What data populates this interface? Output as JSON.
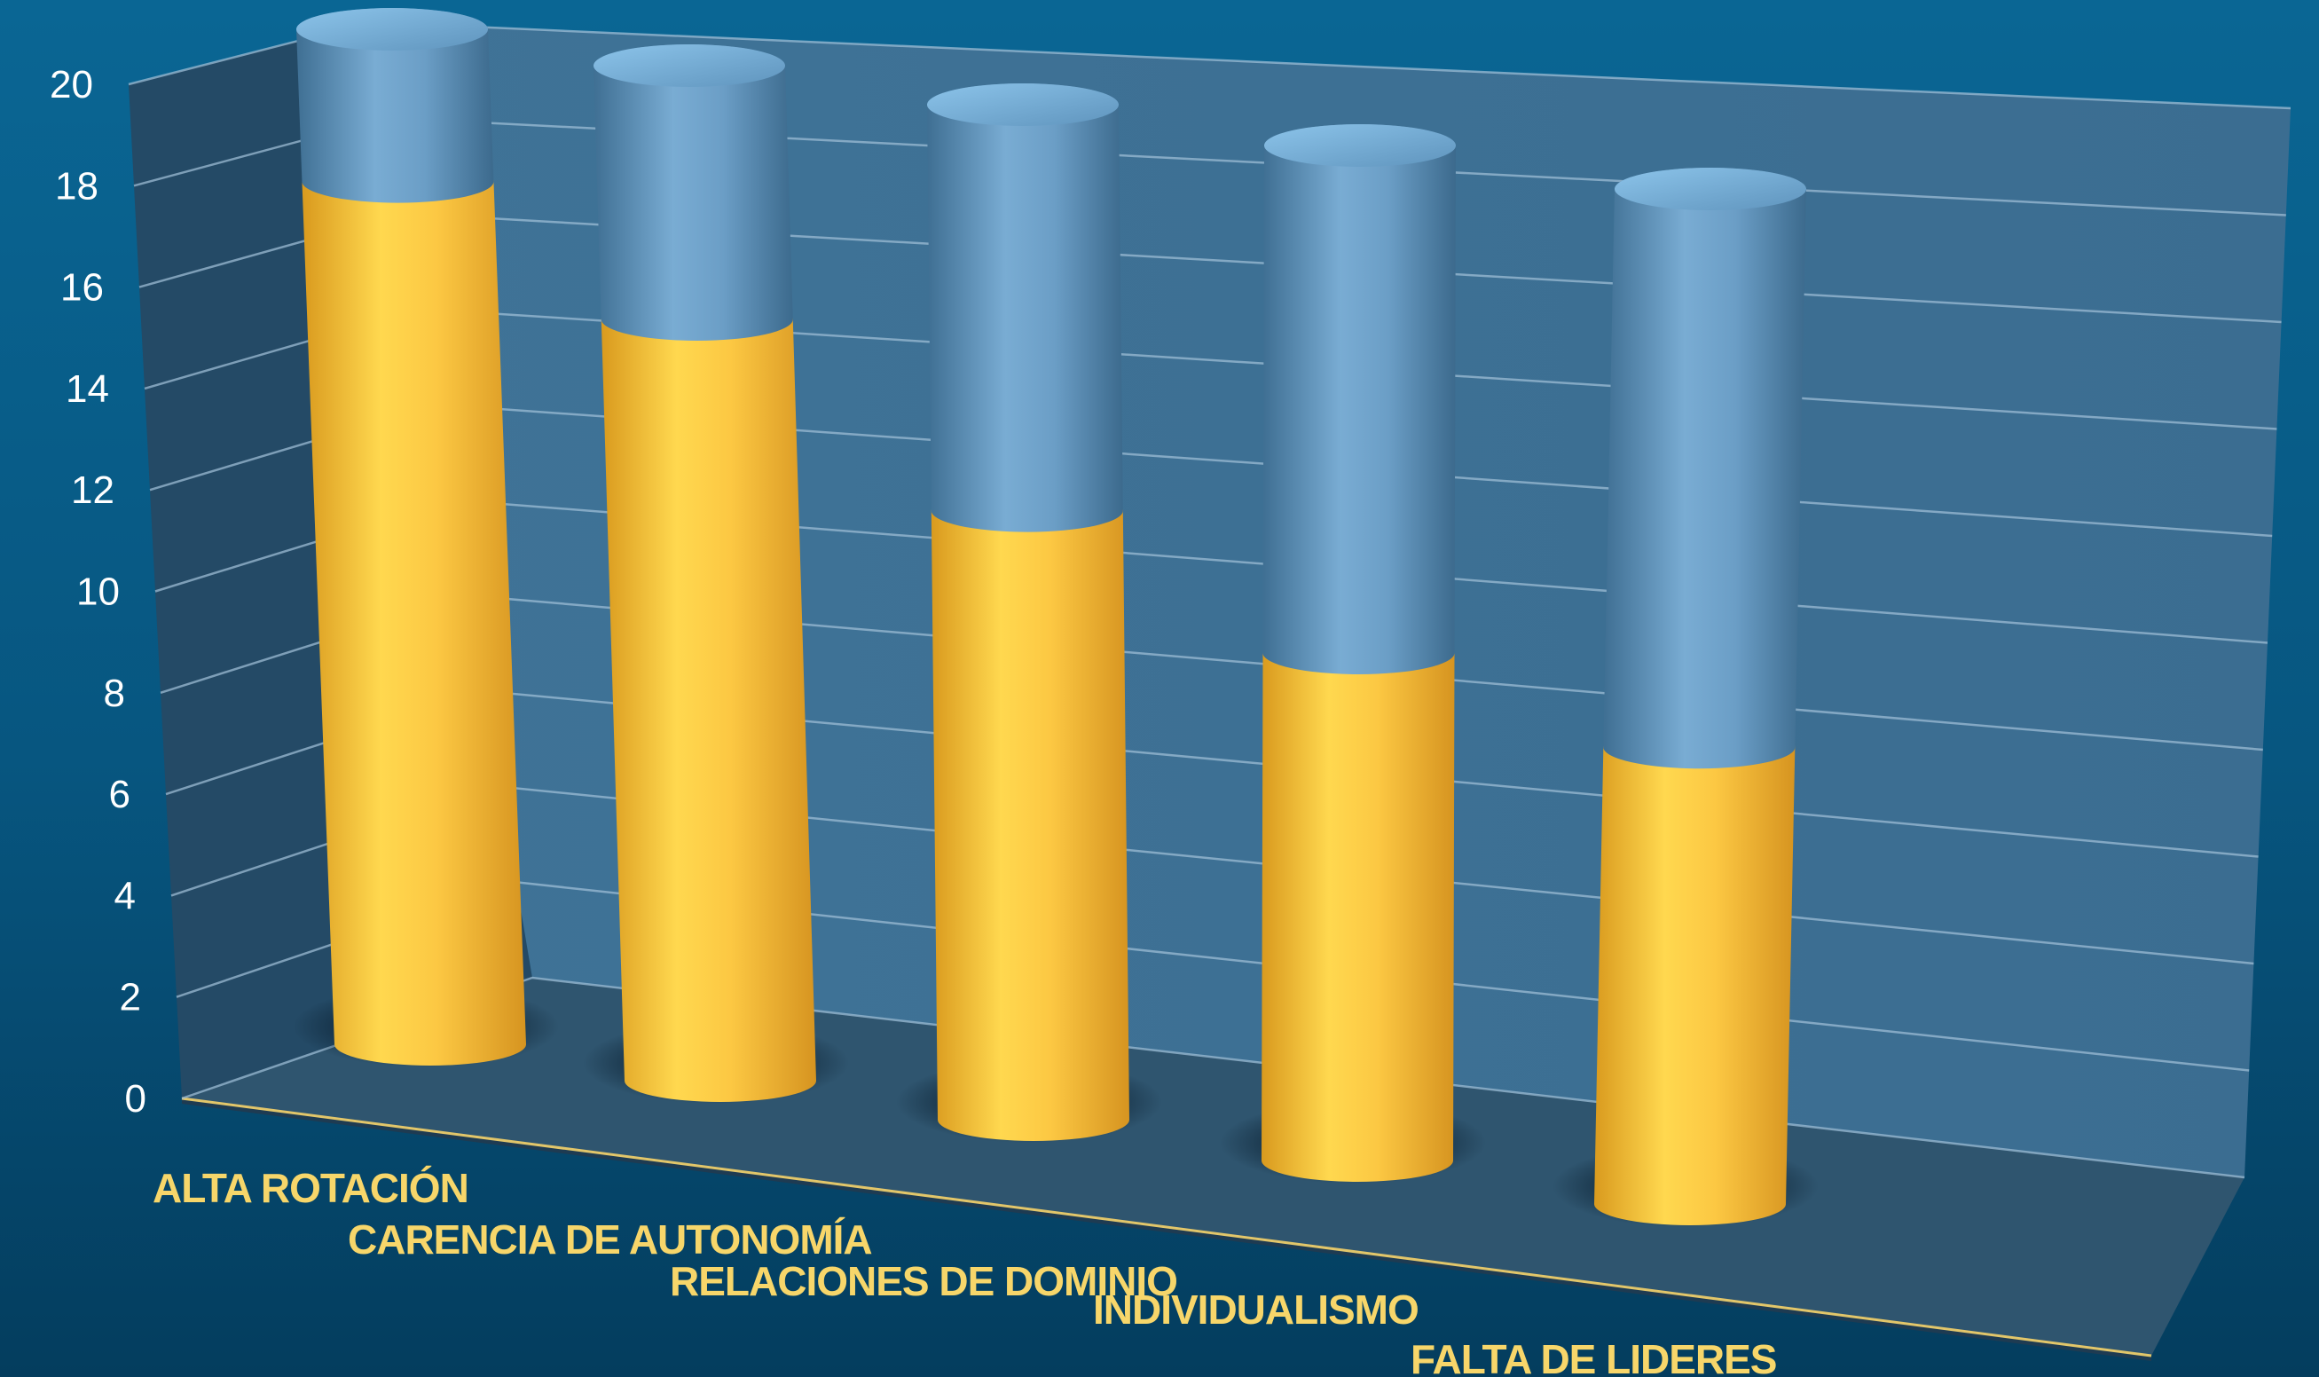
{
  "chart_data": {
    "type": "bar",
    "stacked": true,
    "three_d": true,
    "bar_shape": "cylinder",
    "title": "",
    "xlabel": "",
    "ylabel": "",
    "ylim": [
      0,
      20
    ],
    "yticks": [
      "0",
      "2",
      "4",
      "6",
      "8",
      "10",
      "12",
      "14",
      "16",
      "18",
      "20"
    ],
    "grid": true,
    "legend": "none",
    "categories": [
      "ALTA ROTACIÓN",
      "CARENCIA DE AUTONOMÍA",
      "RELACIONES DE DOMINIO",
      "INDIVIDUALISMO",
      "FALTA DE LIDERES"
    ],
    "series": [
      {
        "values": [
          17,
          15,
          12,
          10,
          9
        ],
        "color": "#f5b93a"
      },
      {
        "values": [
          3,
          5,
          8,
          10,
          11
        ],
        "color": "#6aa6d4"
      }
    ]
  }
}
